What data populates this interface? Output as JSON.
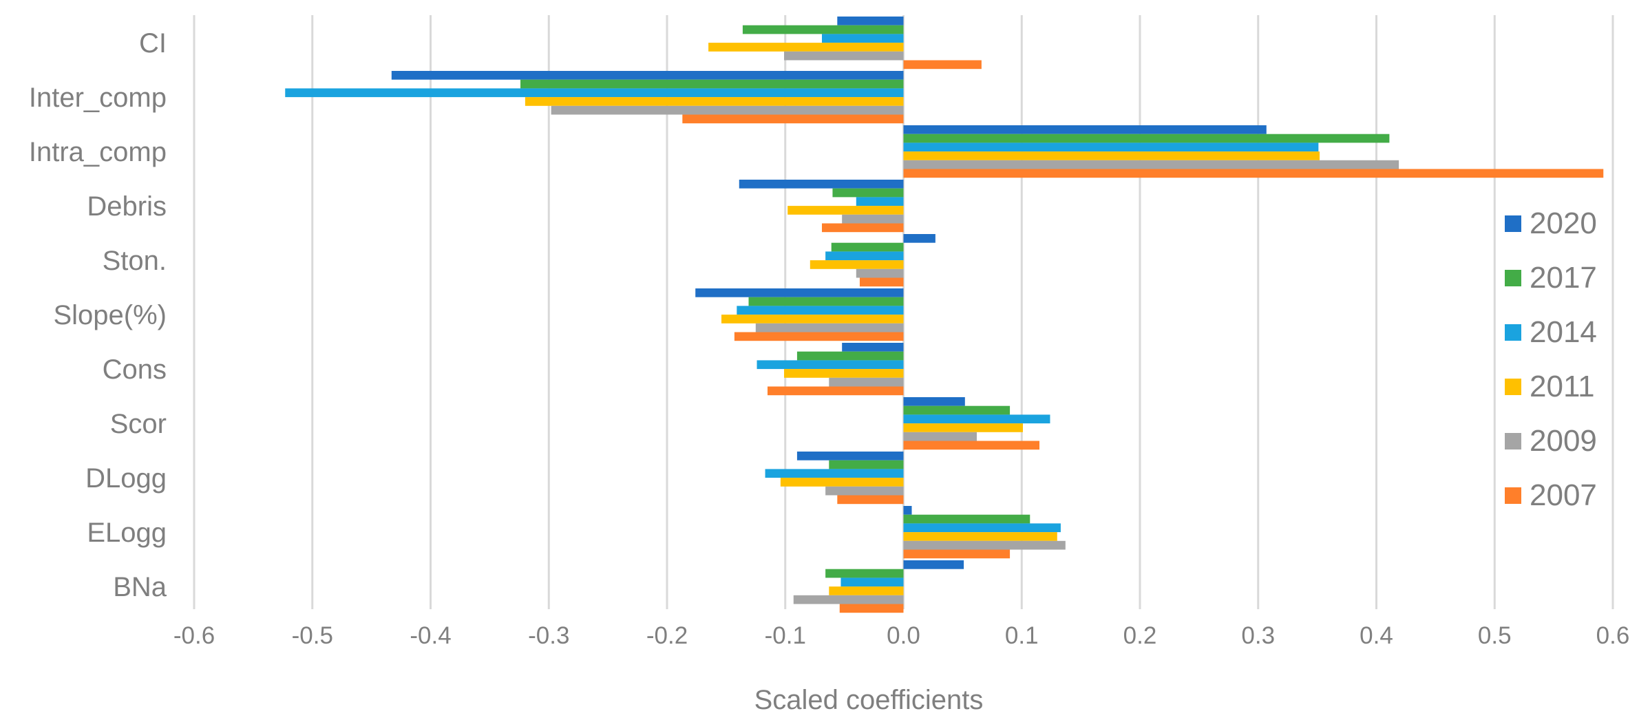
{
  "chart_data": {
    "type": "bar",
    "orientation": "horizontal",
    "title": "",
    "xlabel": "Scaled coefficients",
    "ylabel": "",
    "xlim": [
      -0.6,
      0.6
    ],
    "xticks": [
      "-0.6",
      "-0.5",
      "-0.4",
      "-0.3",
      "-0.2",
      "-0.1",
      "0.0",
      "0.1",
      "0.2",
      "0.3",
      "0.4",
      "0.5",
      "0.6"
    ],
    "grid": true,
    "legend_position": "right",
    "categories": [
      "CI",
      "Inter_comp",
      "Intra_comp",
      "Debris",
      "Ston.",
      "Slope(%)",
      "Cons",
      "Scor",
      "DLogg",
      "ELogg",
      "BNa"
    ],
    "series": [
      {
        "name": "2020",
        "color": "#1f6fc6",
        "values": [
          -0.056,
          -0.433,
          0.307,
          -0.139,
          0.027,
          -0.176,
          -0.052,
          0.052,
          -0.09,
          0.007,
          0.051
        ]
      },
      {
        "name": "2017",
        "color": "#43ac47",
        "values": [
          -0.136,
          -0.324,
          0.411,
          -0.06,
          -0.061,
          -0.131,
          -0.09,
          0.09,
          -0.063,
          0.107,
          -0.066
        ]
      },
      {
        "name": "2014",
        "color": "#1aa3df",
        "values": [
          -0.069,
          -0.523,
          0.351,
          -0.04,
          -0.066,
          -0.141,
          -0.124,
          0.124,
          -0.117,
          0.133,
          -0.053
        ]
      },
      {
        "name": "2011",
        "color": "#ffc000",
        "values": [
          -0.165,
          -0.32,
          0.352,
          -0.098,
          -0.079,
          -0.154,
          -0.101,
          0.101,
          -0.104,
          0.13,
          -0.063
        ]
      },
      {
        "name": "2009",
        "color": "#a5a5a5",
        "values": [
          -0.101,
          -0.298,
          0.419,
          -0.052,
          -0.04,
          -0.125,
          -0.063,
          0.062,
          -0.066,
          0.137,
          -0.093
        ]
      },
      {
        "name": "2007",
        "color": "#ff7f2a",
        "values": [
          0.066,
          -0.187,
          0.592,
          -0.069,
          -0.037,
          -0.143,
          -0.115,
          0.115,
          -0.056,
          0.09,
          -0.054
        ]
      }
    ]
  }
}
